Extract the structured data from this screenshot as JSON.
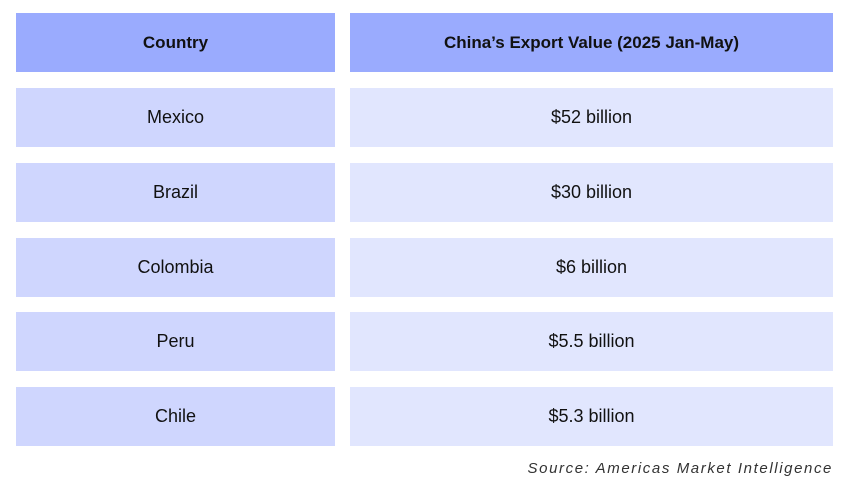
{
  "colors": {
    "header": "#9aabfe",
    "column1": "#cfd6fe",
    "column2": "#e1e6fe"
  },
  "chart_data": {
    "type": "table",
    "columns": [
      "Country",
      "China’s Export Value (2025 Jan-May)"
    ],
    "rows": [
      [
        "Mexico",
        "$52 billion"
      ],
      [
        "Brazil",
        "$30 billion"
      ],
      [
        "Colombia",
        "$6 billion"
      ],
      [
        "Peru",
        "$5.5 billion"
      ],
      [
        "Chile",
        "$5.3 billion"
      ]
    ]
  },
  "source": "Source: Americas Market Intelligence"
}
